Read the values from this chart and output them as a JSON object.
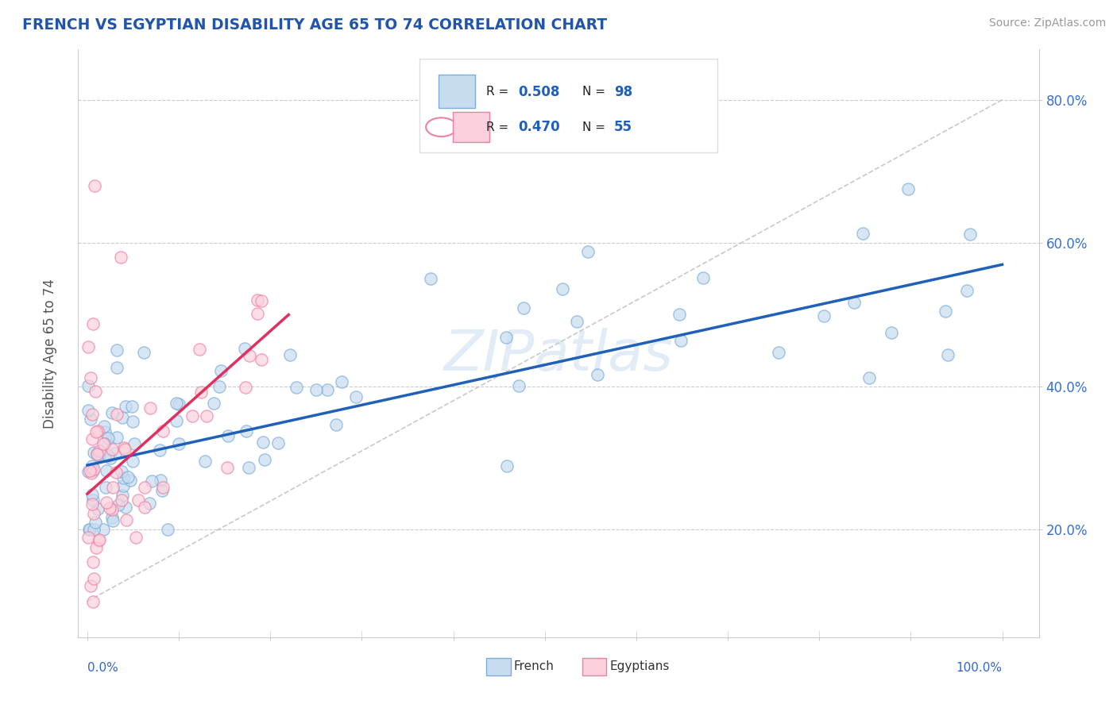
{
  "title": "FRENCH VS EGYPTIAN DISABILITY AGE 65 TO 74 CORRELATION CHART",
  "source_text": "Source: ZipAtlas.com",
  "ylabel": "Disability Age 65 to 74",
  "watermark": "ZIPatlas",
  "legend_french_r": "0.508",
  "legend_french_n": "98",
  "legend_egyptian_r": "0.470",
  "legend_egyptian_n": "55",
  "french_color_fill": "#c8dcf0",
  "french_color_edge": "#7aacdc",
  "egyptian_color_fill": "#fcd0dc",
  "egyptian_color_edge": "#f080a0",
  "french_line_color": "#2060b8",
  "egyptian_line_color": "#e03060",
  "ref_line_color": "#bbbbbb",
  "title_color": "#2255aa",
  "axis_label_color": "#3366cc",
  "source_color": "#999999",
  "ylabel_color": "#555555",
  "background_color": "#ffffff",
  "ytick_color": "#3a70cc",
  "french_line_x0": 0,
  "french_line_y0": 29,
  "french_line_x1": 100,
  "french_line_y1": 57,
  "egyptian_line_x0": 0,
  "egyptian_line_y0": 25,
  "egyptian_line_x1": 22,
  "egyptian_line_y1": 50,
  "ref_line_x0": 0,
  "ref_line_y0": 10,
  "ref_line_x1": 100,
  "ref_line_y1": 80,
  "xmin": -1,
  "xmax": 104,
  "ymin": 5,
  "ymax": 87,
  "yticks": [
    20,
    40,
    60,
    80
  ],
  "n_french": 98,
  "n_egyptian": 55
}
